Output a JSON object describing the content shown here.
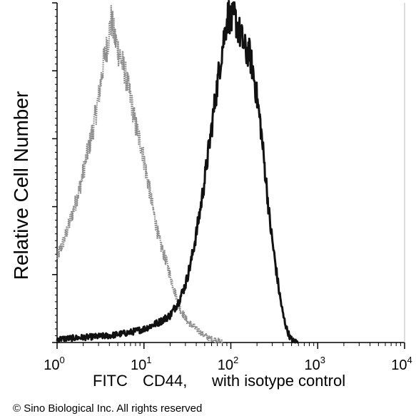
{
  "chart_data": {
    "type": "line",
    "title": "",
    "ylabel": "Relative Cell Number",
    "xlabel_parts": [
      "FITC",
      "CD44,",
      "with isotype control"
    ],
    "xscale": "log",
    "xlim": [
      1,
      10000
    ],
    "ylim": [
      0,
      100
    ],
    "grid": false,
    "x_ticks": [
      {
        "base": "10",
        "exp": "0",
        "value": 1
      },
      {
        "base": "10",
        "exp": "1",
        "value": 10
      },
      {
        "base": "10",
        "exp": "2",
        "value": 100
      },
      {
        "base": "10",
        "exp": "3",
        "value": 1000
      },
      {
        "base": "10",
        "exp": "4",
        "value": 10000
      }
    ],
    "series": [
      {
        "color": "#8c8c8c",
        "x": [
          1.0,
          1.2,
          1.5,
          1.8,
          2.2,
          2.6,
          3.0,
          3.4,
          3.8,
          4.2,
          4.6,
          5.2,
          6.0,
          7.0,
          8.0,
          9.5,
          11,
          13,
          15,
          18,
          22,
          26,
          32,
          40,
          50,
          60,
          70,
          80
        ],
        "y": [
          25,
          30,
          38,
          45,
          55,
          63,
          72,
          82,
          88,
          95,
          90,
          85,
          80,
          72,
          64,
          57,
          48,
          38,
          30,
          24,
          16,
          10,
          6,
          4,
          2,
          1,
          0.5,
          0
        ]
      },
      {
        "color": "#111111",
        "x": [
          1.0,
          2,
          4,
          7,
          10,
          15,
          20,
          25,
          30,
          35,
          40,
          45,
          50,
          55,
          60,
          65,
          70,
          75,
          80,
          85,
          90,
          95,
          100,
          110,
          120,
          130,
          140,
          150,
          160,
          170,
          180,
          190,
          200,
          220,
          240,
          260,
          280,
          300,
          330,
          360,
          400,
          440,
          480,
          520,
          600
        ],
        "y": [
          1,
          1.5,
          2,
          3,
          4,
          6,
          8,
          12,
          17,
          24,
          32,
          40,
          48,
          56,
          63,
          70,
          76,
          82,
          87,
          91,
          95,
          97,
          94,
          96,
          93,
          90,
          88,
          85,
          86,
          83,
          80,
          76,
          72,
          64,
          54,
          45,
          36,
          30,
          22,
          15,
          8,
          4,
          1.5,
          0.5,
          0
        ]
      }
    ]
  },
  "footer": {
    "copyright": "© Sino Biological Inc. All rights reserved"
  }
}
